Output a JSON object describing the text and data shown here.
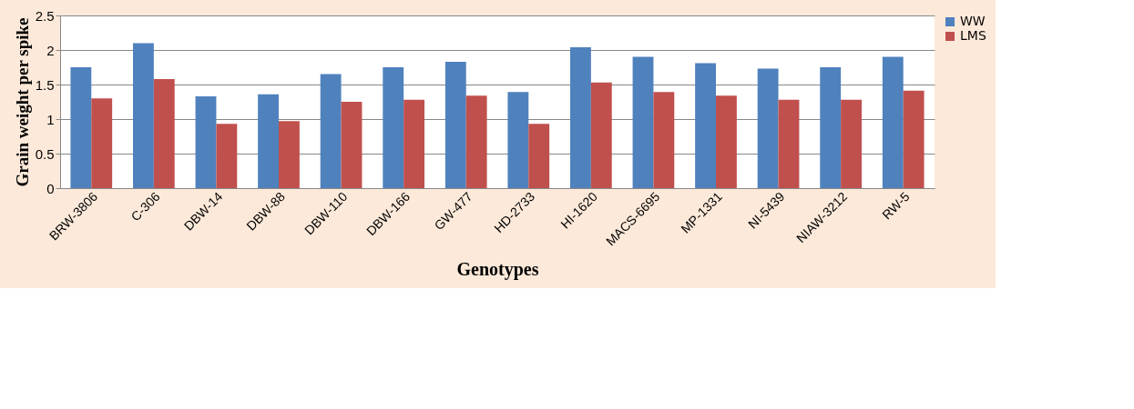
{
  "chart_data": {
    "type": "bar",
    "xlabel": "Genotypes",
    "ylabel": "Grain weight per spike",
    "categories": [
      "BRW-3806",
      "C-306",
      "DBW-14",
      "DBW-88",
      "DBW-110",
      "DBW-166",
      "GW-477",
      "HD-2733",
      "HI-1620",
      "MACS-6695",
      "MP-1331",
      "NI-5439",
      "NIAW-3212",
      "RW-5"
    ],
    "series": [
      {
        "name": "WW",
        "color": "#4f81bd",
        "values": [
          1.75,
          2.1,
          1.33,
          1.36,
          1.65,
          1.75,
          1.83,
          1.39,
          2.04,
          1.9,
          1.81,
          1.73,
          1.75,
          1.9
        ]
      },
      {
        "name": "LMS",
        "color": "#c0504d",
        "values": [
          1.3,
          1.58,
          0.93,
          0.97,
          1.25,
          1.28,
          1.34,
          0.93,
          1.53,
          1.39,
          1.34,
          1.28,
          1.28,
          1.41
        ]
      }
    ],
    "ylim": [
      0,
      2.5
    ],
    "yticks": [
      0,
      0.5,
      1,
      1.5,
      2,
      2.5
    ],
    "grid": "y",
    "legend": "right"
  }
}
